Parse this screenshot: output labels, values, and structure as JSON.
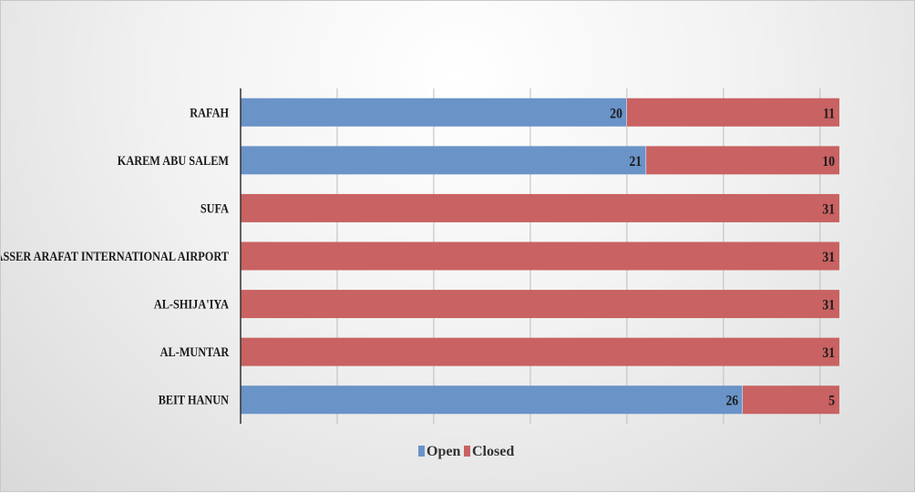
{
  "chart_data": {
    "type": "bar",
    "orientation": "horizontal",
    "stacked": true,
    "categories": [
      "RAFAH",
      "KAREM ABU SALEM",
      "SUFA",
      "YASSER ARAFAT INTERNATIONAL AIRPORT",
      "AL-SHIJA'IYA",
      "AL-MUNTAR",
      "BEIT HANUN"
    ],
    "series": [
      {
        "name": "Open",
        "color": "#6a93c8",
        "values": [
          20,
          21,
          0,
          0,
          0,
          0,
          26
        ]
      },
      {
        "name": "Closed",
        "color": "#c96262",
        "values": [
          11,
          10,
          31,
          31,
          31,
          31,
          5
        ]
      }
    ],
    "xlim": [
      0,
      31
    ],
    "grid": true,
    "legend": "bottom",
    "show_data_labels": true
  }
}
